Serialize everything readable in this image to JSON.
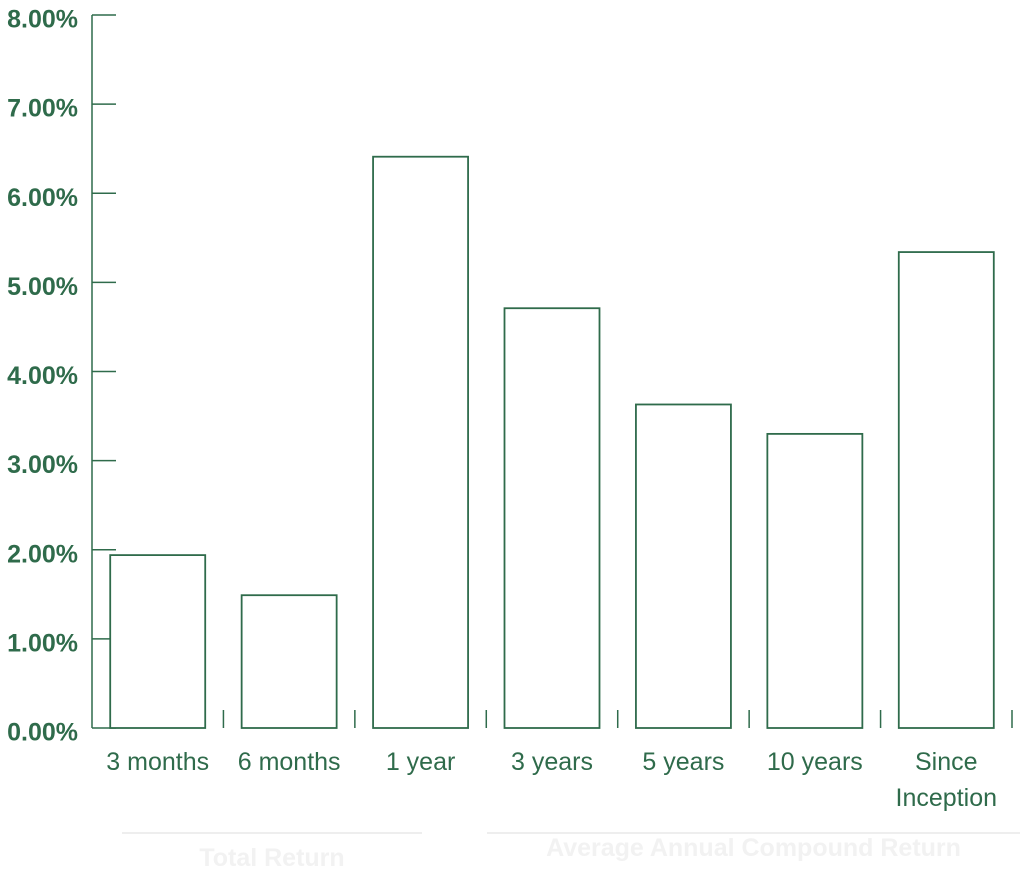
{
  "chart_data": {
    "type": "bar",
    "categories": [
      "3 months",
      "6 months",
      "1 year",
      "3 years",
      "5 years",
      "10 years",
      "Since Inception"
    ],
    "values": [
      1.94,
      1.49,
      6.41,
      4.71,
      3.63,
      3.3,
      5.34
    ],
    "color": "#2f6b4b",
    "ylim": [
      0,
      8
    ],
    "yticks": [
      {
        "value": 0,
        "label": "0.00%"
      },
      {
        "value": 1,
        "label": "1.00%"
      },
      {
        "value": 2,
        "label": "2.00%"
      },
      {
        "value": 3,
        "label": "3.00%"
      },
      {
        "value": 4,
        "label": "4.00%"
      },
      {
        "value": 5,
        "label": "5.00%"
      },
      {
        "value": 6,
        "label": "6.00%"
      },
      {
        "value": 7,
        "label": "7.00%"
      },
      {
        "value": 8,
        "label": "8.00%"
      }
    ],
    "group_labels": [
      "Total Return",
      "Average Annual Compound Return"
    ]
  }
}
